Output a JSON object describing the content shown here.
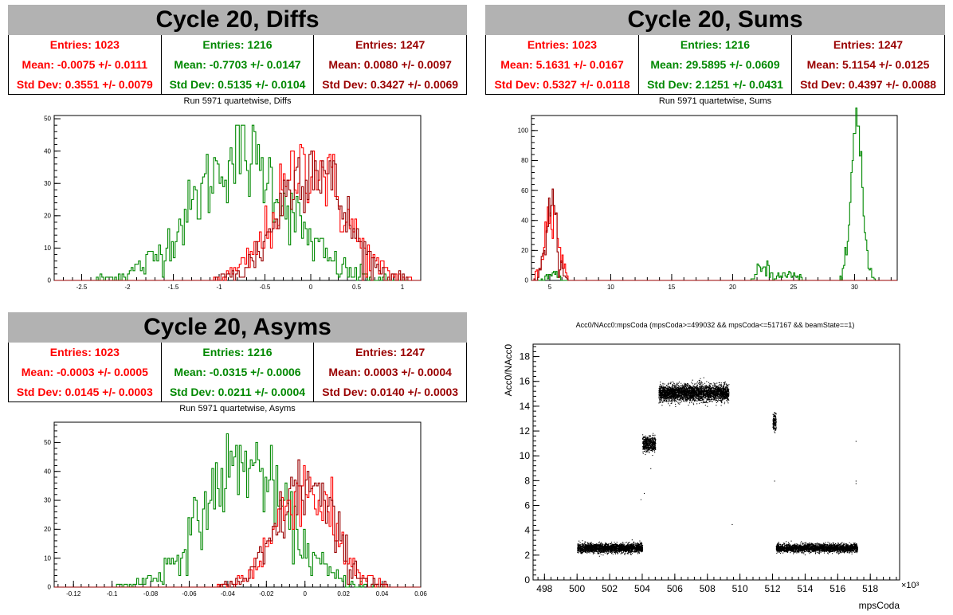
{
  "colors": {
    "red": "#ff0000",
    "green": "#008800",
    "darkred": "#990000",
    "titlebar": "#b2b2b2"
  },
  "panels": {
    "diffs": {
      "title": "Cycle 20, Diffs",
      "subtitle": "Run 5971 quartetwise, Diffs",
      "stats": [
        {
          "entries": "Entries: 1023",
          "mean": "Mean: -0.0075 +/- 0.0111",
          "std": "Std Dev: 0.3551 +/- 0.0079",
          "color": "#ff0000"
        },
        {
          "entries": "Entries: 1216",
          "mean": "Mean: -0.7703 +/- 0.0147",
          "std": "Std Dev: 0.5135 +/- 0.0104",
          "color": "#008800"
        },
        {
          "entries": "Entries: 1247",
          "mean": "Mean: 0.0080 +/- 0.0097",
          "std": "Std Dev: 0.3427 +/- 0.0069",
          "color": "#990000"
        }
      ]
    },
    "sums": {
      "title": "Cycle 20, Sums",
      "subtitle": "Run 5971 quartetwise, Sums",
      "stats": [
        {
          "entries": "Entries: 1023",
          "mean": "Mean: 5.1631 +/- 0.0167",
          "std": "Std Dev: 0.5327 +/- 0.0118",
          "color": "#ff0000"
        },
        {
          "entries": "Entries: 1216",
          "mean": "Mean: 29.5895 +/- 0.0609",
          "std": "Std Dev: 2.1251 +/- 0.0431",
          "color": "#008800"
        },
        {
          "entries": "Entries: 1247",
          "mean": "Mean: 5.1154 +/- 0.0125",
          "std": "Std Dev: 0.4397 +/- 0.0088",
          "color": "#990000"
        }
      ]
    },
    "asyms": {
      "title": "Cycle 20, Asyms",
      "subtitle": "Run 5971 quartetwise, Asyms",
      "stats": [
        {
          "entries": "Entries: 1023",
          "mean": "Mean: -0.0003 +/- 0.0005",
          "std": "Std Dev: 0.0145 +/- 0.0003",
          "color": "#ff0000"
        },
        {
          "entries": "Entries: 1216",
          "mean": "Mean: -0.0315 +/- 0.0006",
          "std": "Std Dev: 0.0211 +/- 0.0004",
          "color": "#008800"
        },
        {
          "entries": "Entries: 1247",
          "mean": "Mean: 0.0003 +/- 0.0004",
          "std": "Std Dev: 0.0140 +/- 0.0003",
          "color": "#990000"
        }
      ]
    },
    "scatter": {
      "title": "Acc0/NAcc0:mpsCoda (mpsCoda>=499032 && mpsCoda<=517167 && beamState==1)"
    }
  },
  "chart_data": [
    {
      "type": "histogram",
      "id": "diffs",
      "xlim": [
        -2.8,
        1.2
      ],
      "ylim": [
        0,
        51
      ],
      "xticks": [
        -2.5,
        -2,
        -1.5,
        -1,
        -0.5,
        0,
        0.5,
        1
      ],
      "yticks": [
        0,
        10,
        20,
        30,
        40,
        50
      ],
      "series": [
        {
          "color": "#008800",
          "mean": -0.7703,
          "std": 0.5135,
          "peak": 49,
          "entries": 1216
        },
        {
          "color": "#ff0000",
          "mean": -0.0075,
          "std": 0.3551,
          "peak": 47,
          "entries": 1023
        },
        {
          "color": "#990000",
          "mean": 0.008,
          "std": 0.3427,
          "peak": 47,
          "entries": 1247
        }
      ]
    },
    {
      "type": "histogram",
      "id": "sums",
      "xlim": [
        3.5,
        33.5
      ],
      "ylim": [
        0,
        110
      ],
      "xticks": [
        5,
        10,
        15,
        20,
        25,
        30
      ],
      "yticks": [
        0,
        20,
        40,
        60,
        80,
        100
      ],
      "series": [
        {
          "color": "#008800",
          "peaks": [
            {
              "mean": 30.2,
              "std": 0.45,
              "peak": 106
            },
            {
              "mean": 22.6,
              "std": 0.5,
              "peak": 10
            },
            {
              "mean": 24.6,
              "std": 0.6,
              "peak": 4
            },
            {
              "mean": 5.1,
              "std": 0.4,
              "peak": 4
            }
          ]
        },
        {
          "color": "#ff0000",
          "peaks": [
            {
              "mean": 5.16,
              "std": 0.53,
              "peak": 51
            }
          ]
        },
        {
          "color": "#990000",
          "peaks": [
            {
              "mean": 5.12,
              "std": 0.44,
              "peak": 50
            }
          ]
        }
      ]
    },
    {
      "type": "histogram",
      "id": "asyms",
      "xlim": [
        -0.13,
        0.06
      ],
      "ylim": [
        0,
        57
      ],
      "xticks": [
        -0.12,
        -0.1,
        -0.08,
        -0.06,
        -0.04,
        -0.02,
        0,
        0.02,
        0.04,
        0.06
      ],
      "yticks": [
        0,
        10,
        20,
        30,
        40,
        50
      ],
      "series": [
        {
          "color": "#008800",
          "mean": -0.0315,
          "std": 0.0211,
          "peak": 55,
          "entries": 1216
        },
        {
          "color": "#ff0000",
          "mean": -0.0003,
          "std": 0.0145,
          "peak": 45,
          "entries": 1023
        },
        {
          "color": "#990000",
          "mean": 0.0003,
          "std": 0.014,
          "peak": 45,
          "entries": 1247
        }
      ]
    },
    {
      "type": "scatter",
      "id": "scatter",
      "xlabel": "mpsCoda",
      "ylabel": "Acc0/NAcc0",
      "xmult": "×10³",
      "xlim": [
        497.3,
        519.8
      ],
      "ylim": [
        0,
        19
      ],
      "xticks": [
        498,
        500,
        502,
        504,
        506,
        508,
        510,
        512,
        514,
        516,
        518
      ],
      "yticks": [
        0,
        2,
        4,
        6,
        8,
        10,
        12,
        14,
        16,
        18
      ],
      "clusters": [
        {
          "x": [
            500.0,
            504.0
          ],
          "y": 2.6,
          "spread": 0.35,
          "n": 2600
        },
        {
          "x": [
            504.0,
            504.8
          ],
          "y": 11.0,
          "spread": 0.6,
          "n": 500
        },
        {
          "x": [
            505.0,
            509.3
          ],
          "y": 15.1,
          "spread": 0.65,
          "n": 3400
        },
        {
          "x": [
            512.0,
            512.2
          ],
          "y": 12.8,
          "spread": 0.7,
          "n": 150
        },
        {
          "x": [
            512.2,
            517.2
          ],
          "y": 2.6,
          "spread": 0.32,
          "n": 2900
        }
      ]
    }
  ]
}
